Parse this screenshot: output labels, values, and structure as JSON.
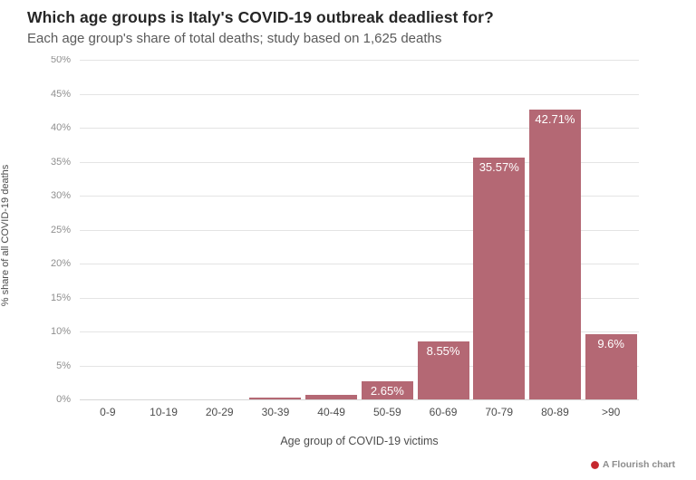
{
  "header": {
    "title": "Which age groups is Italy's COVID-19 outbreak deadliest for?",
    "subtitle": "Each age group's share of total deaths; study based on 1,625 deaths"
  },
  "footer": {
    "credit": "A Flourish chart"
  },
  "colors": {
    "bar": "#b46874",
    "bar_label": "#ffffff",
    "gridline": "#e4e4e4",
    "y_tick_text": "#8f8f8f",
    "x_tick_text": "#4d4d4d",
    "title_text": "#262626",
    "subtitle_text": "#5a5a5a",
    "flourish_red": "#c5272d"
  },
  "chart_data": {
    "type": "bar",
    "title": "Which age groups is Italy's COVID-19 outbreak deadliest for?",
    "subtitle": "Each age group's share of total deaths; study based on 1,625 deaths",
    "categories": [
      "0-9",
      "10-19",
      "20-29",
      "30-39",
      "40-49",
      "50-59",
      "60-69",
      "70-79",
      "80-89",
      ">90"
    ],
    "values": [
      0,
      0,
      0,
      0.31,
      0.62,
      2.65,
      8.55,
      35.57,
      42.71,
      9.6
    ],
    "bar_labels": [
      "",
      "",
      "",
      "",
      "",
      "2.65%",
      "8.55%",
      "35.57%",
      "42.71%",
      "9.6%"
    ],
    "xlabel": "Age group of COVID-19 victims",
    "ylabel": "% share of all COVID-19 deaths",
    "ylim": [
      0,
      50
    ],
    "y_tick_step": 5,
    "y_ticks": [
      "0%",
      "5%",
      "10%",
      "15%",
      "20%",
      "25%",
      "30%",
      "35%",
      "40%",
      "45%",
      "50%"
    ],
    "grid": "horizontal",
    "legend": "none"
  }
}
